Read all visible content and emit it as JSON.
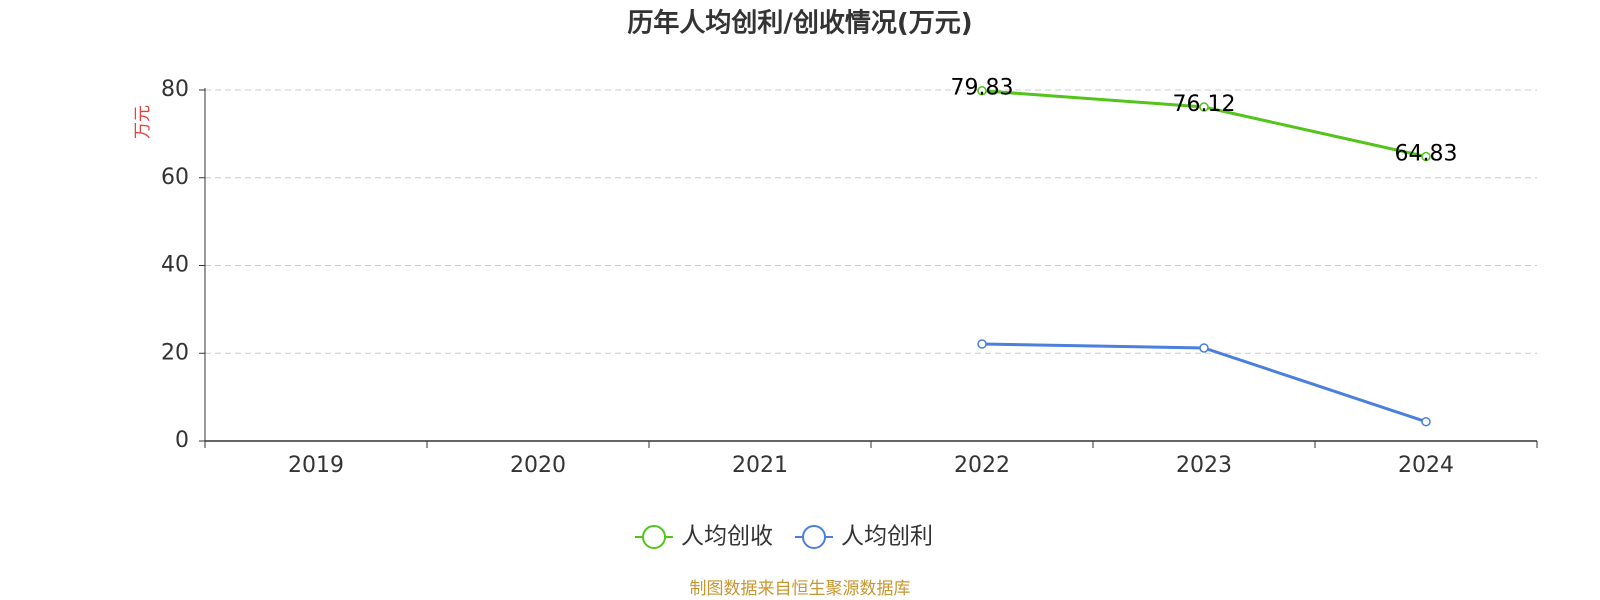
{
  "chart_data": {
    "type": "line",
    "title": "历年人均创利/创收情况(万元)",
    "y_label": "万元",
    "categories": [
      "2019",
      "2020",
      "2021",
      "2022",
      "2023",
      "2024"
    ],
    "series": [
      {
        "name": "人均创收",
        "color": "#52c41a",
        "values": [
          null,
          null,
          null,
          79.83,
          76.12,
          64.83
        ],
        "show_labels": true
      },
      {
        "name": "人均创利",
        "color": "#4a7fdc",
        "values": [
          null,
          null,
          null,
          22.1,
          21.2,
          4.4
        ],
        "show_labels": false
      }
    ],
    "ylim": [
      0,
      80
    ],
    "yticks": [
      0,
      20,
      40,
      60,
      80
    ],
    "grid": true,
    "legend": "bottom",
    "source": "制图数据来自恒生聚源数据库"
  }
}
